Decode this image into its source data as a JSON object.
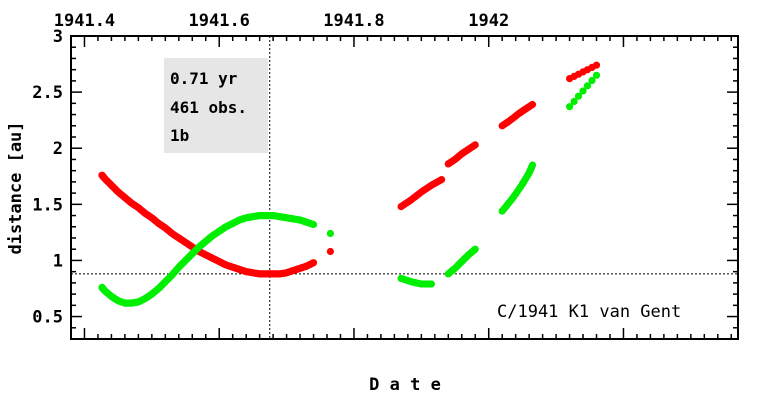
{
  "chart_data": {
    "type": "scatter",
    "title": "",
    "xlabel": "D a t e",
    "ylabel": "distance [au]",
    "xlim": [
      1941.38,
      1942.37
    ],
    "ylim": [
      0.3,
      3.0
    ],
    "x_ticks": [
      "1941.4",
      "1941.6",
      "1941.8",
      "1942"
    ],
    "x_tick_values": [
      1941.4,
      1941.6,
      1941.8,
      1942.0
    ],
    "y_ticks": [
      "0.5",
      "1",
      "1.5",
      "2",
      "2.5",
      "3"
    ],
    "y_tick_values": [
      0.5,
      1.0,
      1.5,
      2.0,
      2.5,
      3.0
    ],
    "grid": false,
    "info_box": [
      "0.71 yr",
      "461 obs.",
      "1b"
    ],
    "object_name": "C/1941 K1 van Gent",
    "reference_lines": {
      "vertical_date": 1941.675,
      "horizontal_distance": 0.88
    },
    "series": [
      {
        "color": "#ff0000",
        "segments": [
          {
            "x": [
              1941.426,
              1941.43,
              1941.44,
              1941.45,
              1941.46,
              1941.47,
              1941.48,
              1941.49,
              1941.5,
              1941.51,
              1941.52,
              1941.53,
              1941.54,
              1941.55,
              1941.56,
              1941.57,
              1941.58,
              1941.59,
              1941.6,
              1941.61,
              1941.62,
              1941.63,
              1941.64,
              1941.65,
              1941.66,
              1941.67,
              1941.68,
              1941.69,
              1941.7,
              1941.71,
              1941.72,
              1941.73,
              1941.74
            ],
            "y": [
              1.76,
              1.73,
              1.67,
              1.61,
              1.56,
              1.51,
              1.47,
              1.42,
              1.38,
              1.33,
              1.29,
              1.24,
              1.2,
              1.16,
              1.12,
              1.08,
              1.05,
              1.02,
              0.99,
              0.96,
              0.94,
              0.92,
              0.9,
              0.89,
              0.88,
              0.88,
              0.88,
              0.88,
              0.89,
              0.91,
              0.93,
              0.95,
              0.98
            ]
          },
          {
            "x": [
              1941.765
            ],
            "y": [
              1.08
            ]
          },
          {
            "x": [
              1941.87,
              1941.885,
              1941.9,
              1941.915,
              1941.93
            ],
            "y": [
              1.48,
              1.54,
              1.61,
              1.67,
              1.72
            ]
          },
          {
            "x": [
              1941.94,
              1941.95,
              1941.96,
              1941.97,
              1941.98
            ],
            "y": [
              1.86,
              1.9,
              1.95,
              1.99,
              2.03
            ]
          },
          {
            "x": [
              1942.02,
              1942.03,
              1942.045,
              1942.055,
              1942.065
            ],
            "y": [
              2.2,
              2.24,
              2.31,
              2.35,
              2.39
            ]
          },
          {
            "x": [
              1942.12,
              1942.16
            ],
            "y": [
              2.62,
              2.74
            ]
          }
        ]
      },
      {
        "color": "#00ee00",
        "segments": [
          {
            "x": [
              1941.426,
              1941.43,
              1941.44,
              1941.45,
              1941.46,
              1941.47,
              1941.48,
              1941.49,
              1941.5,
              1941.51,
              1941.52,
              1941.53,
              1941.54,
              1941.55,
              1941.56,
              1941.57,
              1941.58,
              1941.59,
              1941.6,
              1941.61,
              1941.62,
              1941.63,
              1941.64,
              1941.65,
              1941.66,
              1941.67,
              1941.68,
              1941.69,
              1941.7,
              1941.71,
              1941.72,
              1941.73,
              1941.74
            ],
            "y": [
              0.76,
              0.73,
              0.68,
              0.64,
              0.62,
              0.62,
              0.63,
              0.66,
              0.7,
              0.75,
              0.81,
              0.87,
              0.94,
              1.0,
              1.06,
              1.12,
              1.17,
              1.22,
              1.26,
              1.3,
              1.33,
              1.36,
              1.38,
              1.39,
              1.4,
              1.4,
              1.4,
              1.39,
              1.38,
              1.37,
              1.36,
              1.34,
              1.32
            ]
          },
          {
            "x": [
              1941.765
            ],
            "y": [
              1.24
            ]
          },
          {
            "x": [
              1941.87,
              1941.885,
              1941.9,
              1941.915
            ],
            "y": [
              0.84,
              0.81,
              0.79,
              0.79
            ]
          },
          {
            "x": [
              1941.94,
              1941.95,
              1941.96,
              1941.97,
              1941.98
            ],
            "y": [
              0.88,
              0.93,
              0.99,
              1.05,
              1.1
            ]
          },
          {
            "x": [
              1942.02,
              1942.035,
              1942.05,
              1942.06,
              1942.065
            ],
            "y": [
              1.44,
              1.55,
              1.68,
              1.78,
              1.85
            ]
          },
          {
            "x": [
              1942.12,
              1942.16
            ],
            "y": [
              2.37,
              2.65
            ]
          }
        ]
      }
    ]
  }
}
